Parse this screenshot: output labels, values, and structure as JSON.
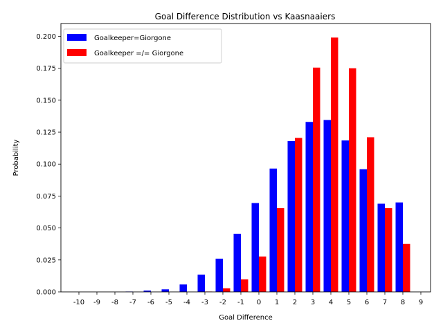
{
  "chart_data": {
    "type": "bar",
    "title": "Goal Difference Distribution vs Kaasnaaiers",
    "xlabel": "Goal Difference",
    "ylabel": "Probability",
    "categories": [
      "-10",
      "-9",
      "-8",
      "-7",
      "-6",
      "-5",
      "-4",
      "-3",
      "-2",
      "-1",
      "0",
      "1",
      "2",
      "3",
      "4",
      "5",
      "6",
      "7",
      "8",
      "9"
    ],
    "ylim": [
      0,
      0.21
    ],
    "yticks": [
      "0.000",
      "0.025",
      "0.050",
      "0.075",
      "0.100",
      "0.125",
      "0.150",
      "0.175",
      "0.200"
    ],
    "legend_position": "top-left",
    "grid": false,
    "series": [
      {
        "name": "Goalkeeper=Giorgone",
        "color": "#0000ff",
        "values": [
          0,
          0,
          0,
          0.0003,
          0.001,
          0.002,
          0.0058,
          0.0135,
          0.026,
          0.0455,
          0.0695,
          0.0965,
          0.118,
          0.133,
          0.1345,
          0.1185,
          0.096,
          0.069,
          0.07,
          0
        ]
      },
      {
        "name": "Goalkeeper =/= Giorgone",
        "color": "#ff0000",
        "values": [
          0,
          0,
          0,
          0,
          0,
          0,
          0,
          0.0003,
          0.0028,
          0.0098,
          0.0277,
          0.0655,
          0.1205,
          0.1755,
          0.199,
          0.175,
          0.121,
          0.0655,
          0.0375,
          0
        ]
      }
    ]
  }
}
